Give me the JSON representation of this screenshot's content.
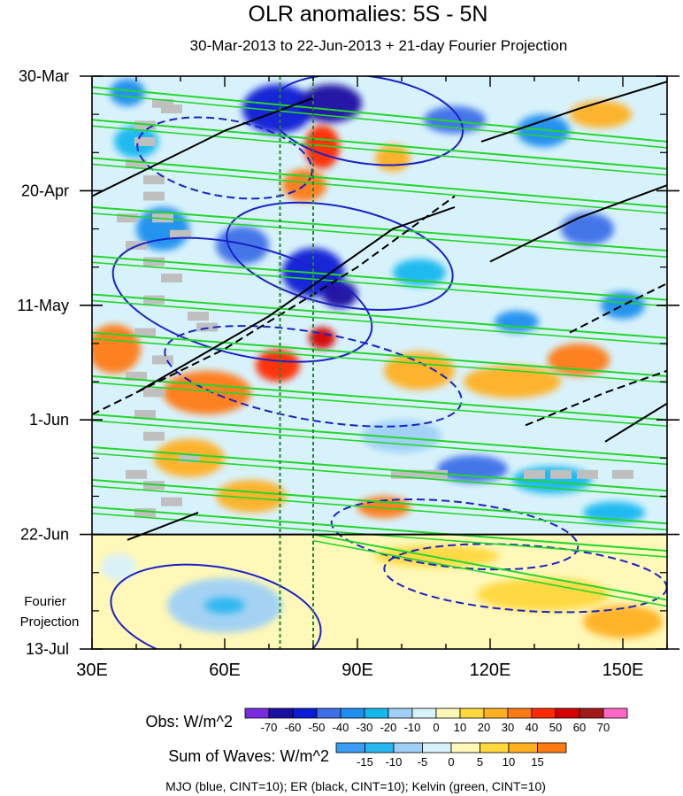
{
  "chart_data": {
    "type": "heatmap",
    "title": "OLR anomalies: 5S - 5N",
    "subtitle": "30-Mar-2013 to 22-Jun-2013 + 21-day Fourier Projection",
    "projection_label": [
      "Fourier",
      "Projection"
    ],
    "x_axis": {
      "range": [
        30,
        160
      ],
      "ticks": [
        30,
        60,
        90,
        120,
        150
      ],
      "tick_labels": [
        "30E",
        "60E",
        "90E",
        "120E",
        "150E"
      ]
    },
    "y_axis": {
      "range_days": [
        0,
        105
      ],
      "ticks": [
        0,
        21,
        42,
        63,
        84,
        105
      ],
      "tick_labels": [
        "30-Mar",
        "20-Apr",
        "11-May",
        "1-Jun",
        "22-Jun",
        "13-Jul"
      ]
    },
    "observation_end_day": 84,
    "guide_lines_lon": [
      72.5,
      80
    ],
    "obs_colorbar": {
      "label": "Obs: W/m^2",
      "levels": [
        "-70",
        "-60",
        "-50",
        "-40",
        "-30",
        "-20",
        "-10",
        "0",
        "10",
        "20",
        "30",
        "40",
        "50",
        "60",
        "70"
      ],
      "colors": [
        "#7a2be0",
        "#1a0fa3",
        "#0a1ad6",
        "#3c6fe8",
        "#1e8fef",
        "#14b8ef",
        "#9fd0f7",
        "#d8f2fb",
        "#fff8b8",
        "#ffd83c",
        "#ffb020",
        "#ff7a12",
        "#ff2a00",
        "#d40000",
        "#a31a1a",
        "#ff66c4"
      ]
    },
    "waves_colorbar": {
      "label": "Sum of Waves: W/m^2",
      "levels": [
        "-15",
        "-10",
        "-5",
        "0",
        "5",
        "10",
        "15"
      ],
      "colors": [
        "#3a9cf2",
        "#29b6f0",
        "#9fd0f7",
        "#d8f2fb",
        "#fff8b8",
        "#ffd83c",
        "#ffb020",
        "#ff7a12"
      ]
    },
    "footer": "MJO (blue, CINT=10); ER (black, CINT=10); Kelvin (green, CINT=10)",
    "anomaly_patches": [
      {
        "lon": 72,
        "day": 6,
        "w": 16,
        "h": 9,
        "level": -60
      },
      {
        "lon": 84,
        "day": 5,
        "w": 14,
        "h": 7,
        "level": -70
      },
      {
        "lon": 112,
        "day": 8,
        "w": 14,
        "h": 5,
        "level": -50
      },
      {
        "lon": 132,
        "day": 10,
        "w": 12,
        "h": 6,
        "level": -40
      },
      {
        "lon": 38,
        "day": 3,
        "w": 8,
        "h": 5,
        "level": -40
      },
      {
        "lon": 40,
        "day": 12,
        "w": 10,
        "h": 6,
        "level": -30
      },
      {
        "lon": 82,
        "day": 13,
        "w": 8,
        "h": 8,
        "level": 40
      },
      {
        "lon": 78,
        "day": 20,
        "w": 10,
        "h": 6,
        "level": 30
      },
      {
        "lon": 98,
        "day": 15,
        "w": 8,
        "h": 5,
        "level": 20
      },
      {
        "lon": 145,
        "day": 7,
        "w": 14,
        "h": 5,
        "level": 20
      },
      {
        "lon": 46,
        "day": 28,
        "w": 12,
        "h": 8,
        "level": -40
      },
      {
        "lon": 64,
        "day": 31,
        "w": 12,
        "h": 7,
        "level": -50
      },
      {
        "lon": 80,
        "day": 36,
        "w": 14,
        "h": 9,
        "level": -60
      },
      {
        "lon": 86,
        "day": 40,
        "w": 8,
        "h": 5,
        "level": -70
      },
      {
        "lon": 104,
        "day": 36,
        "w": 12,
        "h": 5,
        "level": -30
      },
      {
        "lon": 142,
        "day": 28,
        "w": 12,
        "h": 6,
        "level": -50
      },
      {
        "lon": 150,
        "day": 42,
        "w": 10,
        "h": 5,
        "level": -40
      },
      {
        "lon": 126,
        "day": 45,
        "w": 10,
        "h": 4,
        "level": -40
      },
      {
        "lon": 35,
        "day": 50,
        "w": 12,
        "h": 9,
        "level": 30
      },
      {
        "lon": 56,
        "day": 58,
        "w": 20,
        "h": 8,
        "level": 30
      },
      {
        "lon": 72,
        "day": 53,
        "w": 10,
        "h": 6,
        "level": 40
      },
      {
        "lon": 82,
        "day": 48,
        "w": 6,
        "h": 4,
        "level": 50
      },
      {
        "lon": 104,
        "day": 54,
        "w": 16,
        "h": 7,
        "level": 20
      },
      {
        "lon": 125,
        "day": 56,
        "w": 22,
        "h": 6,
        "level": 20
      },
      {
        "lon": 140,
        "day": 52,
        "w": 14,
        "h": 6,
        "level": 30
      },
      {
        "lon": 100,
        "day": 66,
        "w": 18,
        "h": 6,
        "level": -20
      },
      {
        "lon": 116,
        "day": 72,
        "w": 16,
        "h": 5,
        "level": -50
      },
      {
        "lon": 134,
        "day": 74,
        "w": 18,
        "h": 5,
        "level": -30
      },
      {
        "lon": 52,
        "day": 70,
        "w": 16,
        "h": 7,
        "level": 20
      },
      {
        "lon": 66,
        "day": 77,
        "w": 16,
        "h": 6,
        "level": 20
      },
      {
        "lon": 96,
        "day": 79,
        "w": 12,
        "h": 4,
        "level": 30
      },
      {
        "lon": 148,
        "day": 80,
        "w": 14,
        "h": 4,
        "level": -30
      }
    ],
    "projection_patches": [
      {
        "lon": 60,
        "day": 97,
        "w": 26,
        "h": 10,
        "level": -10
      },
      {
        "lon": 60,
        "day": 97,
        "w": 9,
        "h": 3,
        "level": -15
      },
      {
        "lon": 108,
        "day": 88,
        "w": 28,
        "h": 4,
        "level": 5
      },
      {
        "lon": 132,
        "day": 95,
        "w": 30,
        "h": 6,
        "level": 5
      },
      {
        "lon": 150,
        "day": 100,
        "w": 18,
        "h": 6,
        "level": 10
      },
      {
        "lon": 36,
        "day": 90,
        "w": 8,
        "h": 5,
        "level": -5
      }
    ],
    "missing_cells": [
      [
        46,
        5
      ],
      [
        48,
        6
      ],
      [
        42,
        9
      ],
      [
        42,
        12
      ],
      [
        40,
        16
      ],
      [
        44,
        19
      ],
      [
        44,
        22
      ],
      [
        38,
        26
      ],
      [
        46,
        26
      ],
      [
        50,
        29
      ],
      [
        40,
        31
      ],
      [
        44,
        34
      ],
      [
        48,
        37
      ],
      [
        44,
        41
      ],
      [
        54,
        44
      ],
      [
        56,
        46
      ],
      [
        42,
        47
      ],
      [
        46,
        52
      ],
      [
        40,
        55
      ],
      [
        44,
        58
      ],
      [
        42,
        62
      ],
      [
        44,
        66
      ],
      [
        52,
        70
      ],
      [
        40,
        73
      ],
      [
        44,
        75
      ],
      [
        48,
        78
      ],
      [
        42,
        80
      ],
      [
        100,
        73
      ],
      [
        104,
        73
      ],
      [
        108,
        73
      ],
      [
        130,
        73
      ],
      [
        136,
        73
      ],
      [
        142,
        73
      ],
      [
        150,
        73
      ]
    ],
    "kelvin_lines": [
      [
        [
          30,
          2
        ],
        [
          160,
          12
        ]
      ],
      [
        [
          30,
          8
        ],
        [
          160,
          17
        ]
      ],
      [
        [
          30,
          15
        ],
        [
          160,
          24
        ]
      ],
      [
        [
          30,
          24
        ],
        [
          160,
          32
        ]
      ],
      [
        [
          30,
          33
        ],
        [
          160,
          41
        ]
      ],
      [
        [
          30,
          40
        ],
        [
          160,
          48
        ]
      ],
      [
        [
          30,
          47
        ],
        [
          160,
          55
        ]
      ],
      [
        [
          30,
          55
        ],
        [
          160,
          63
        ]
      ],
      [
        [
          30,
          62
        ],
        [
          160,
          70
        ]
      ],
      [
        [
          30,
          68
        ],
        [
          160,
          76
        ]
      ],
      [
        [
          30,
          74
        ],
        [
          160,
          82
        ]
      ],
      [
        [
          30,
          79
        ],
        [
          160,
          87
        ]
      ],
      [
        [
          80,
          84
        ],
        [
          160,
          96
        ]
      ]
    ],
    "mjo_contours": [
      {
        "lon": 92,
        "day": 8,
        "rx": 22,
        "ry": 8,
        "rot": 8,
        "dash": false
      },
      {
        "lon": 60,
        "day": 15,
        "rx": 20,
        "ry": 7,
        "rot": 10,
        "dash": true
      },
      {
        "lon": 86,
        "day": 33,
        "rx": 26,
        "ry": 9,
        "rot": 12,
        "dash": false
      },
      {
        "lon": 64,
        "day": 41,
        "rx": 30,
        "ry": 10,
        "rot": 14,
        "dash": false
      },
      {
        "lon": 80,
        "day": 55,
        "rx": 34,
        "ry": 8,
        "rot": 10,
        "dash": true
      },
      {
        "lon": 112,
        "day": 84,
        "rx": 28,
        "ry": 6,
        "rot": 6,
        "dash": true
      },
      {
        "lon": 128,
        "day": 92,
        "rx": 32,
        "ry": 6,
        "rot": 4,
        "dash": true
      },
      {
        "lon": 58,
        "day": 99,
        "rx": 24,
        "ry": 9,
        "rot": 10,
        "dash": false
      }
    ],
    "er_lines": [
      {
        "points": [
          [
            30,
            22
          ],
          [
            60,
            10
          ],
          [
            80,
            4
          ]
        ],
        "dash": false
      },
      {
        "points": [
          [
            30,
            62
          ],
          [
            60,
            50
          ],
          [
            90,
            35
          ],
          [
            112,
            22
          ]
        ],
        "dash": true
      },
      {
        "points": [
          [
            40,
            58
          ],
          [
            70,
            44
          ],
          [
            98,
            28
          ],
          [
            112,
            24
          ]
        ],
        "dash": false
      },
      {
        "points": [
          [
            118,
            12
          ],
          [
            140,
            6
          ],
          [
            160,
            1
          ]
        ],
        "dash": false
      },
      {
        "points": [
          [
            120,
            34
          ],
          [
            140,
            26
          ],
          [
            160,
            20
          ]
        ],
        "dash": false
      },
      {
        "points": [
          [
            128,
            64
          ],
          [
            146,
            58
          ],
          [
            160,
            54
          ]
        ],
        "dash": true
      },
      {
        "points": [
          [
            138,
            47
          ],
          [
            150,
            42
          ],
          [
            160,
            38
          ]
        ],
        "dash": true
      },
      {
        "points": [
          [
            146,
            67
          ],
          [
            156,
            62
          ],
          [
            160,
            60
          ]
        ],
        "dash": false
      },
      {
        "points": [
          [
            38,
            85
          ],
          [
            54,
            80
          ]
        ],
        "dash": false
      }
    ]
  }
}
